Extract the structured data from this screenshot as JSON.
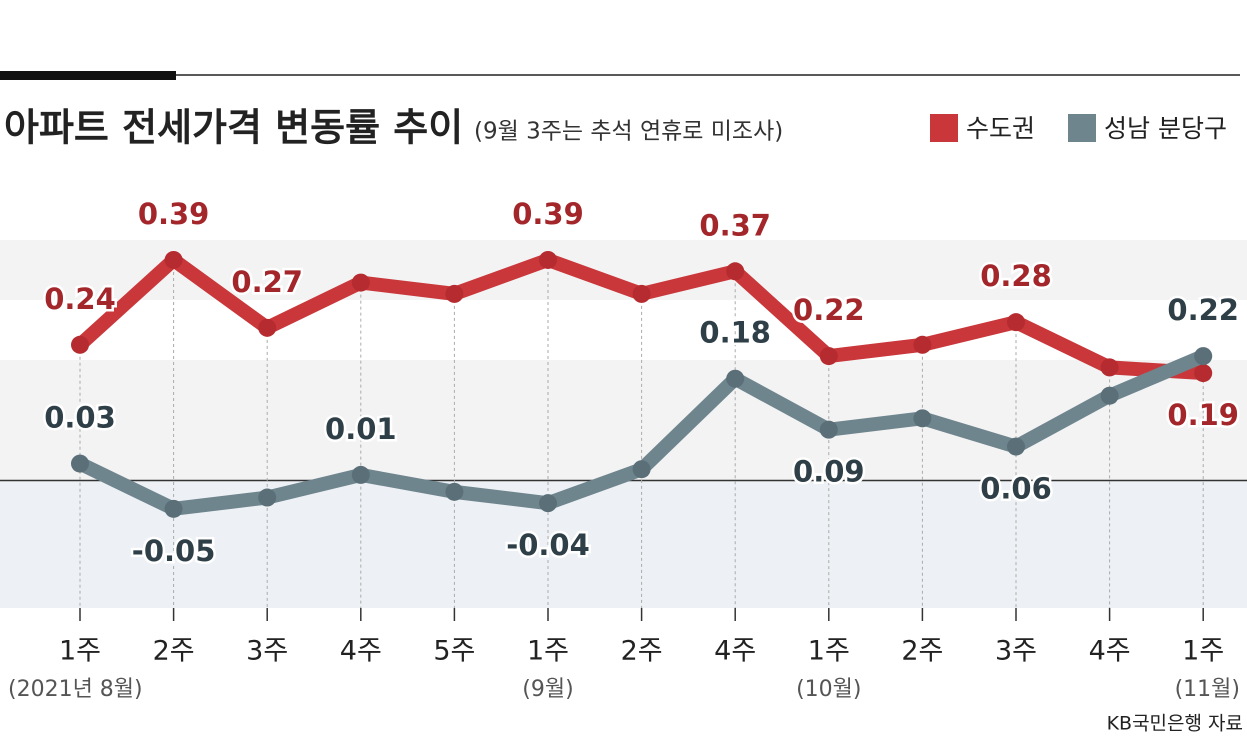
{
  "chart_data": {
    "type": "line",
    "title": "아파트 전세가격 변동률 추이",
    "subtitle": "(9월 3주는 추석 연휴로 미조사)",
    "source": "KB국민은행 자료",
    "categories": [
      "1주",
      "2주",
      "3주",
      "4주",
      "5주",
      "1주",
      "2주",
      "4주",
      "1주",
      "2주",
      "3주",
      "4주",
      "1주"
    ],
    "x_sublabels": [
      "(2021년 8월)",
      null,
      null,
      null,
      null,
      "(9월)",
      null,
      null,
      "(10월)",
      null,
      null,
      null,
      "(11월)"
    ],
    "ylim": [
      -0.22,
      0.45
    ],
    "series": [
      {
        "name": "수도권",
        "color": "#c9373a",
        "values": [
          0.24,
          0.39,
          0.27,
          0.35,
          0.33,
          0.39,
          0.33,
          0.37,
          0.22,
          0.24,
          0.28,
          0.2,
          0.19
        ],
        "value_labels": [
          "0.24",
          "0.39",
          "0.27",
          null,
          null,
          "0.39",
          null,
          "0.37",
          "0.22",
          null,
          "0.28",
          null,
          "0.19"
        ]
      },
      {
        "name": "성남 분당구",
        "color": "#6f858e",
        "values": [
          0.03,
          -0.05,
          -0.03,
          0.01,
          -0.02,
          -0.04,
          0.02,
          0.18,
          0.09,
          0.11,
          0.06,
          0.15,
          0.22
        ],
        "value_labels": [
          "0.03",
          "-0.05",
          null,
          "0.01",
          null,
          "-0.04",
          null,
          "0.18",
          "0.09",
          null,
          "0.06",
          null,
          "0.22"
        ]
      }
    ]
  }
}
